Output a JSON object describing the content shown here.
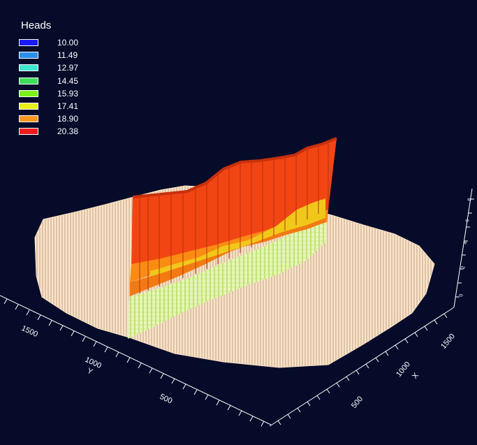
{
  "legend": {
    "title": "Heads",
    "entries": [
      {
        "label": "10.00",
        "color": "#1a1aff"
      },
      {
        "label": "11.49",
        "color": "#2b8fe8"
      },
      {
        "label": "12.97",
        "color": "#3de8d0"
      },
      {
        "label": "14.45",
        "color": "#3dde5a"
      },
      {
        "label": "15.93",
        "color": "#7cf21c"
      },
      {
        "label": "17.41",
        "color": "#e6f21a"
      },
      {
        "label": "18.90",
        "color": "#f7961e"
      },
      {
        "label": "20.38",
        "color": "#ee1c1c"
      }
    ]
  },
  "axes": {
    "left_axis": {
      "title": "Y",
      "ticks": [
        "1500",
        "1000",
        "500"
      ]
    },
    "right_axis": {
      "title": "X",
      "ticks": [
        "1500",
        "1000",
        "500"
      ]
    },
    "vertical_axis": {
      "ticks": [
        "8",
        "6",
        "4",
        "2",
        "0"
      ]
    }
  },
  "colors": {
    "background": "#050b29",
    "surface": "#fde3c6",
    "axis": "#ffffff"
  }
}
